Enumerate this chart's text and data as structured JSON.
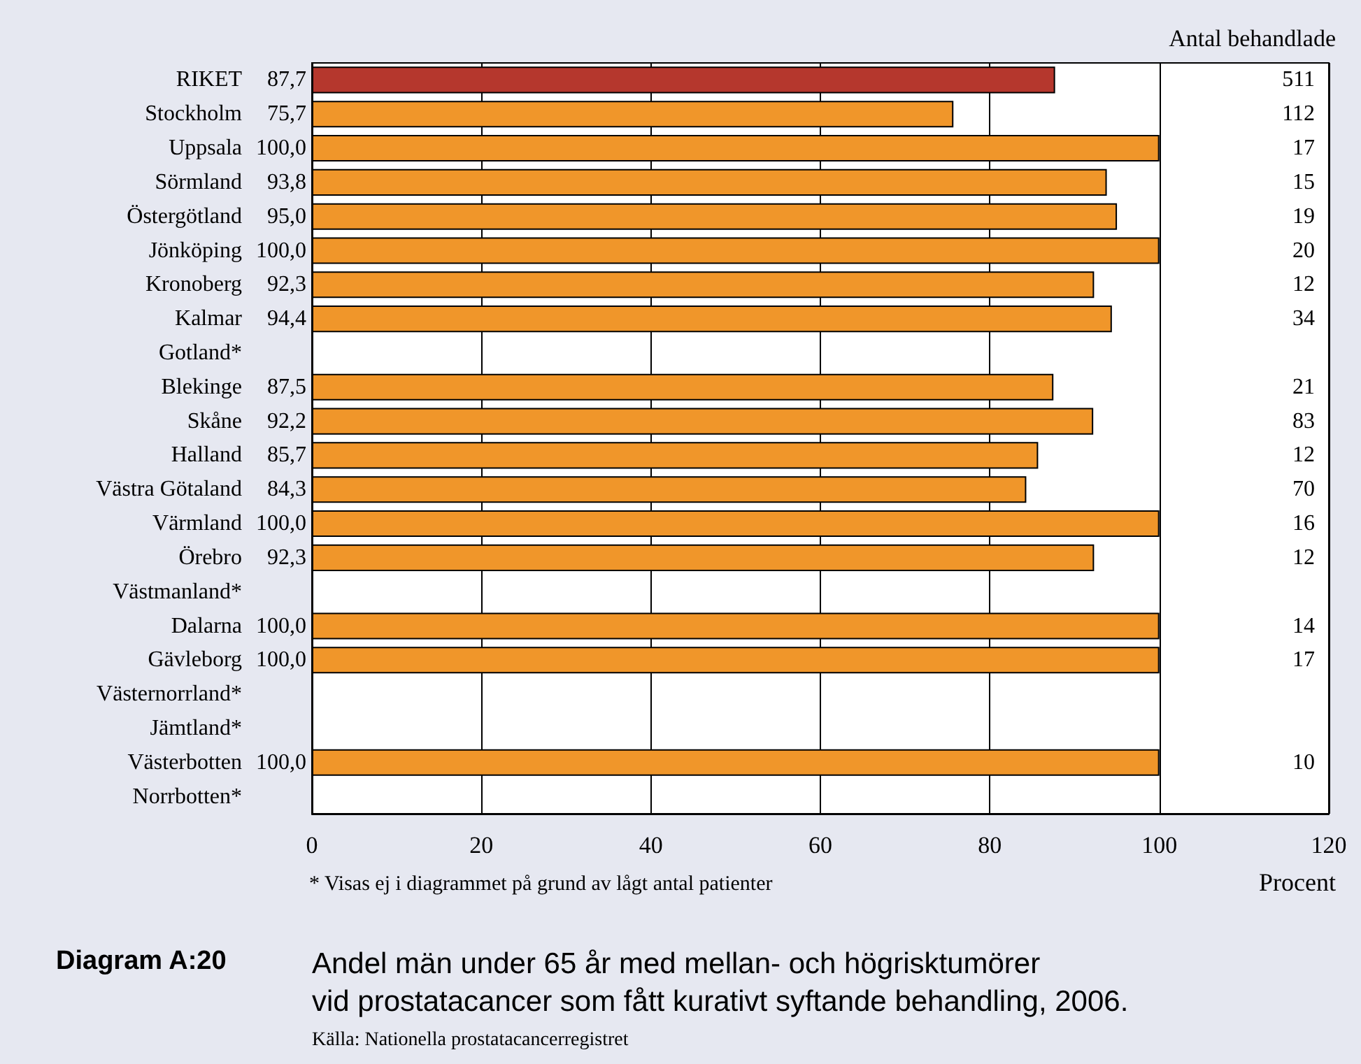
{
  "chart_data": {
    "type": "bar",
    "orientation": "horizontal",
    "title": "Andel män under 65 år med mellan- och högrisktumörer\nvid prostatacancer som fått kurativt syftande behandling, 2006.",
    "xlabel": "Procent",
    "categories": [
      "RIKET",
      "Stockholm",
      "Uppsala",
      "Sörmland",
      "Östergötland",
      "Jönköping",
      "Kronoberg",
      "Kalmar",
      "Gotland*",
      "Blekinge",
      "Skåne",
      "Halland",
      "Västra Götaland",
      "Värmland",
      "Örebro",
      "Västmanland*",
      "Dalarna",
      "Gävleborg",
      "Västernorrland*",
      "Jämtland*",
      "Västerbotten",
      "Norrbotten*"
    ],
    "values": [
      87.7,
      75.7,
      100.0,
      93.8,
      95.0,
      100.0,
      92.3,
      94.4,
      null,
      87.5,
      92.2,
      85.7,
      84.3,
      100.0,
      92.3,
      null,
      100.0,
      100.0,
      null,
      null,
      100.0,
      null
    ],
    "value_labels": [
      "87,7",
      "75,7",
      "100,0",
      "93,8",
      "95,0",
      "100,0",
      "92,3",
      "94,4",
      null,
      "87,5",
      "92,2",
      "85,7",
      "84,3",
      "100,0",
      "92,3",
      null,
      "100,0",
      "100,0",
      null,
      null,
      "100,0",
      null
    ],
    "colors": [
      "#b5372d",
      "#f0962a",
      "#f0962a",
      "#f0962a",
      "#f0962a",
      "#f0962a",
      "#f0962a",
      "#f0962a",
      "#f0962a",
      "#f0962a",
      "#f0962a",
      "#f0962a",
      "#f0962a",
      "#f0962a",
      "#f0962a",
      "#f0962a",
      "#f0962a",
      "#f0962a",
      "#f0962a",
      "#f0962a",
      "#f0962a",
      "#f0962a"
    ],
    "xlim": [
      0,
      120
    ],
    "xticks": [
      0,
      20,
      40,
      60,
      80,
      100,
      120
    ],
    "grid": "x",
    "annotations": [
      "Antal behandlade",
      "* Visas ej i diagrammet på grund av lågt antal patienter",
      "Diagram A:20",
      "Källa: Nationella prostatacancerregistret",
      "511",
      "112",
      "17",
      "15",
      "19",
      "20",
      "12",
      "34",
      "21",
      "83",
      "12",
      "70",
      "16",
      "12",
      "14",
      "17",
      "10"
    ]
  }
}
